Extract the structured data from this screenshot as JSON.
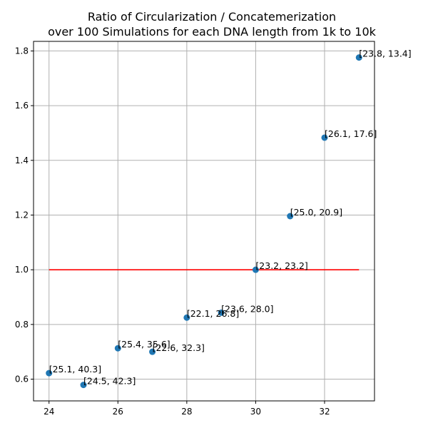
{
  "chart_data": {
    "type": "scatter",
    "title_lines": [
      "Ratio of Circularization / Concatemerization",
      "over 100 Simulations for each DNA length from 1k to 10k"
    ],
    "xlabel": "",
    "ylabel": "",
    "xlim": [
      23.55,
      33.45
    ],
    "ylim": [
      0.5205,
      1.835
    ],
    "xticks": [
      24,
      26,
      28,
      30,
      32
    ],
    "yticks": [
      0.6,
      0.8,
      1.0,
      1.2,
      1.4,
      1.6,
      1.8
    ],
    "xtick_labels": [
      "24",
      "26",
      "28",
      "30",
      "32"
    ],
    "ytick_labels": [
      "0.6",
      "0.8",
      "1.0",
      "1.2",
      "1.4",
      "1.6",
      "1.8"
    ],
    "grid": true,
    "point_color": "#1f77b4",
    "reference_line": {
      "y": 1.0,
      "x_start": 24,
      "x_end": 33,
      "color": "#ff0000"
    },
    "points": [
      {
        "x": 24,
        "y": 0.622,
        "label": "[25.1, 40.3]"
      },
      {
        "x": 25,
        "y": 0.579,
        "label": "[24.5, 42.3]"
      },
      {
        "x": 26,
        "y": 0.713,
        "label": "[25.4, 35.6]"
      },
      {
        "x": 27,
        "y": 0.7,
        "label": "[22.6, 32.3]"
      },
      {
        "x": 28,
        "y": 0.825,
        "label": "[22.1, 26.8]"
      },
      {
        "x": 29,
        "y": 0.843,
        "label": "[23.6, 28.0]"
      },
      {
        "x": 30,
        "y": 1.0,
        "label": "[23.2, 23.2]"
      },
      {
        "x": 31,
        "y": 1.196,
        "label": "[25.0, 20.9]"
      },
      {
        "x": 32,
        "y": 1.483,
        "label": "[26.1, 17.6]"
      },
      {
        "x": 33,
        "y": 1.776,
        "label": "[23.8, 13.4]"
      }
    ]
  }
}
